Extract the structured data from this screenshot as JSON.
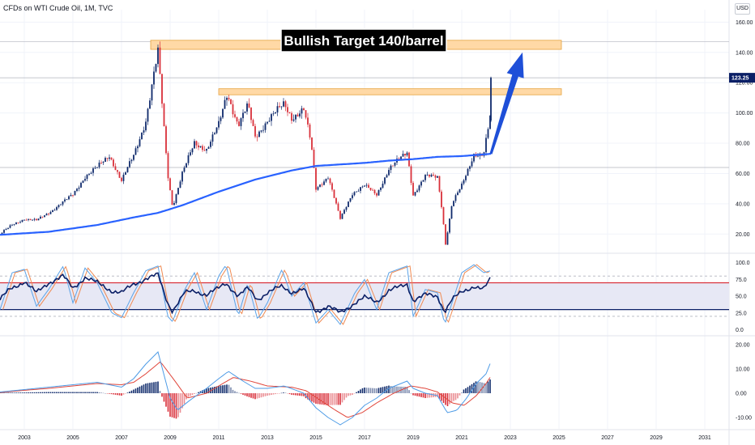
{
  "header": {
    "symbol_title": "CFDs on WTI Crude Oil, 1M, TVC",
    "currency": "USD"
  },
  "colors": {
    "bull": "#0f2a6b",
    "bear": "#d9303a",
    "ma_line": "#2962ff",
    "zone_fill": "#ffd9a6",
    "zone_border": "#e6a23c",
    "arrow": "#1e4fd8",
    "rsi_line": "#0b1f66",
    "rsi_band": "#e7e8f5",
    "stoch_k": "#5ba3e8",
    "stoch_d": "#f08a52",
    "macd_line": "#4d9be6",
    "signal_line": "#e0453a",
    "last_price_bg": "#0b1f66"
  },
  "chart_data": [
    {
      "type": "candlestick",
      "title": "CFDs on WTI Crude Oil, 1M, TVC",
      "annotation": "Bullish Target 140/barrel",
      "last_price_label": "123.25",
      "y_ticks": [
        "20.00",
        "40.00",
        "60.00",
        "80.00",
        "100.00",
        "120.00",
        "140.00",
        "160.00"
      ],
      "ylim": [
        10,
        165
      ],
      "x_ticks": [
        "2003",
        "2005",
        "2007",
        "2009",
        "2011",
        "2013",
        "2015",
        "2017",
        "2019",
        "2021",
        "2023",
        "2025",
        "2027",
        "2029",
        "2031"
      ],
      "xlim": [
        2002.0,
        2032.0
      ],
      "price_anchors": [
        [
          2002.0,
          20
        ],
        [
          2002.5,
          26
        ],
        [
          2003.0,
          30
        ],
        [
          2003.5,
          29
        ],
        [
          2004.0,
          34
        ],
        [
          2004.5,
          40
        ],
        [
          2005.0,
          46
        ],
        [
          2005.5,
          58
        ],
        [
          2006.0,
          64
        ],
        [
          2006.5,
          72
        ],
        [
          2007.0,
          55
        ],
        [
          2007.5,
          72
        ],
        [
          2008.0,
          95
        ],
        [
          2008.5,
          140
        ],
        [
          2008.9,
          60
        ],
        [
          2009.1,
          38
        ],
        [
          2009.5,
          60
        ],
        [
          2010.0,
          80
        ],
        [
          2010.5,
          76
        ],
        [
          2011.0,
          92
        ],
        [
          2011.35,
          113
        ],
        [
          2011.8,
          92
        ],
        [
          2012.2,
          105
        ],
        [
          2012.5,
          84
        ],
        [
          2013.0,
          95
        ],
        [
          2013.7,
          106
        ],
        [
          2014.0,
          97
        ],
        [
          2014.5,
          102
        ],
        [
          2014.8,
          80
        ],
        [
          2015.0,
          50
        ],
        [
          2015.5,
          58
        ],
        [
          2016.0,
          30
        ],
        [
          2016.5,
          47
        ],
        [
          2017.0,
          52
        ],
        [
          2017.5,
          46
        ],
        [
          2018.0,
          63
        ],
        [
          2018.75,
          74
        ],
        [
          2019.0,
          46
        ],
        [
          2019.5,
          58
        ],
        [
          2020.0,
          58
        ],
        [
          2020.2,
          35
        ],
        [
          2020.33,
          13
        ],
        [
          2020.6,
          40
        ],
        [
          2021.0,
          52
        ],
        [
          2021.5,
          73
        ],
        [
          2021.9,
          72
        ],
        [
          2022.2,
          100
        ]
      ],
      "final_candle": {
        "x": 2022.2,
        "open": 95,
        "high": 124,
        "low": 94,
        "close": 123.25
      },
      "moving_average": [
        [
          2002.0,
          19.5
        ],
        [
          2004.0,
          21.5
        ],
        [
          2006.0,
          26
        ],
        [
          2007.5,
          31
        ],
        [
          2008.5,
          34
        ],
        [
          2009.5,
          39
        ],
        [
          2011.0,
          48
        ],
        [
          2012.5,
          56
        ],
        [
          2014.0,
          62
        ],
        [
          2015.0,
          65
        ],
        [
          2016.0,
          66
        ],
        [
          2017.0,
          67
        ],
        [
          2018.0,
          68.5
        ],
        [
          2019.0,
          69.5
        ],
        [
          2020.0,
          71
        ],
        [
          2021.0,
          71.5
        ],
        [
          2022.2,
          73
        ]
      ],
      "resistance_zones": [
        {
          "x_start": 2008.2,
          "x_end": 2025.1,
          "y_low": 142,
          "y_high": 148
        },
        {
          "x_start": 2011.0,
          "x_end": 2025.1,
          "y_low": 112,
          "y_high": 116
        }
      ],
      "horizontal_lines": [
        64,
        123.25,
        147
      ],
      "arrow": {
        "from": [
          2022.2,
          73
        ],
        "to": [
          2023.5,
          140
        ]
      }
    },
    {
      "type": "line",
      "indicator": "RSI with Stochastic",
      "y_ticks": [
        "0.0",
        "25.0",
        "50.0",
        "75.0",
        "100.0"
      ],
      "ylim": [
        -3,
        108
      ],
      "band": [
        30,
        70
      ],
      "dashed_levels": [
        20,
        80
      ],
      "rsi_anchors": [
        [
          2002.0,
          45
        ],
        [
          2002.4,
          60
        ],
        [
          2003.0,
          72
        ],
        [
          2003.5,
          55
        ],
        [
          2004.0,
          70
        ],
        [
          2004.6,
          80
        ],
        [
          2005.0,
          62
        ],
        [
          2005.5,
          78
        ],
        [
          2006.0,
          70
        ],
        [
          2006.6,
          58
        ],
        [
          2007.0,
          55
        ],
        [
          2007.5,
          68
        ],
        [
          2008.0,
          76
        ],
        [
          2008.5,
          82
        ],
        [
          2008.9,
          40
        ],
        [
          2009.1,
          28
        ],
        [
          2009.6,
          55
        ],
        [
          2010.0,
          58
        ],
        [
          2010.5,
          52
        ],
        [
          2011.0,
          62
        ],
        [
          2011.3,
          70
        ],
        [
          2011.8,
          50
        ],
        [
          2012.2,
          62
        ],
        [
          2012.6,
          45
        ],
        [
          2013.0,
          55
        ],
        [
          2013.6,
          65
        ],
        [
          2014.0,
          56
        ],
        [
          2014.5,
          60
        ],
        [
          2015.0,
          27
        ],
        [
          2015.5,
          35
        ],
        [
          2016.0,
          25
        ],
        [
          2016.6,
          40
        ],
        [
          2017.0,
          48
        ],
        [
          2017.5,
          42
        ],
        [
          2018.0,
          58
        ],
        [
          2018.75,
          68
        ],
        [
          2019.0,
          44
        ],
        [
          2019.5,
          52
        ],
        [
          2020.0,
          50
        ],
        [
          2020.3,
          27
        ],
        [
          2020.6,
          45
        ],
        [
          2021.0,
          56
        ],
        [
          2021.5,
          65
        ],
        [
          2021.9,
          60
        ],
        [
          2022.2,
          77
        ]
      ],
      "stoch_anchors": [
        [
          2002.0,
          30
        ],
        [
          2002.5,
          85
        ],
        [
          2003.0,
          90
        ],
        [
          2003.5,
          35
        ],
        [
          2004.0,
          60
        ],
        [
          2004.6,
          95
        ],
        [
          2005.0,
          40
        ],
        [
          2005.5,
          92
        ],
        [
          2006.0,
          70
        ],
        [
          2006.6,
          25
        ],
        [
          2007.0,
          18
        ],
        [
          2007.5,
          55
        ],
        [
          2008.0,
          88
        ],
        [
          2008.5,
          95
        ],
        [
          2008.9,
          20
        ],
        [
          2009.1,
          12
        ],
        [
          2009.6,
          60
        ],
        [
          2010.0,
          85
        ],
        [
          2010.5,
          30
        ],
        [
          2011.0,
          80
        ],
        [
          2011.3,
          97
        ],
        [
          2011.8,
          20
        ],
        [
          2012.2,
          70
        ],
        [
          2012.6,
          15
        ],
        [
          2013.0,
          40
        ],
        [
          2013.6,
          90
        ],
        [
          2014.0,
          50
        ],
        [
          2014.5,
          70
        ],
        [
          2015.0,
          10
        ],
        [
          2015.5,
          30
        ],
        [
          2016.0,
          8
        ],
        [
          2016.6,
          55
        ],
        [
          2017.0,
          75
        ],
        [
          2017.5,
          30
        ],
        [
          2018.0,
          85
        ],
        [
          2018.75,
          95
        ],
        [
          2019.0,
          20
        ],
        [
          2019.5,
          60
        ],
        [
          2020.0,
          55
        ],
        [
          2020.3,
          8
        ],
        [
          2020.6,
          40
        ],
        [
          2021.0,
          85
        ],
        [
          2021.5,
          97
        ],
        [
          2021.9,
          85
        ],
        [
          2022.2,
          88
        ]
      ]
    },
    {
      "type": "bar",
      "indicator": "MACD",
      "y_ticks": [
        "-10.00",
        "0.00",
        "10.00",
        "20.00"
      ],
      "ylim": [
        -14,
        22
      ],
      "macd_anchors": [
        [
          2002.0,
          0.5
        ],
        [
          2003.0,
          1.5
        ],
        [
          2004.0,
          2.5
        ],
        [
          2005.0,
          3.5
        ],
        [
          2006.0,
          4.5
        ],
        [
          2007.0,
          2.5
        ],
        [
          2007.5,
          6
        ],
        [
          2008.0,
          12
        ],
        [
          2008.5,
          17
        ],
        [
          2009.0,
          -2
        ],
        [
          2009.3,
          -7
        ],
        [
          2009.8,
          -3
        ],
        [
          2010.5,
          2
        ],
        [
          2011.0,
          6
        ],
        [
          2011.4,
          9
        ],
        [
          2012.0,
          5
        ],
        [
          2012.5,
          2
        ],
        [
          2013.0,
          2
        ],
        [
          2013.7,
          3
        ],
        [
          2014.5,
          0
        ],
        [
          2015.0,
          -6
        ],
        [
          2015.5,
          -10
        ],
        [
          2016.0,
          -13
        ],
        [
          2016.5,
          -10
        ],
        [
          2017.0,
          -5
        ],
        [
          2017.5,
          -2
        ],
        [
          2018.0,
          2
        ],
        [
          2018.75,
          5
        ],
        [
          2019.0,
          2
        ],
        [
          2019.5,
          0
        ],
        [
          2020.0,
          -1
        ],
        [
          2020.4,
          -8
        ],
        [
          2020.8,
          -7
        ],
        [
          2021.2,
          -2
        ],
        [
          2021.6,
          4
        ],
        [
          2022.0,
          8
        ],
        [
          2022.2,
          13
        ]
      ],
      "signal_anchors": [
        [
          2002.0,
          0.3
        ],
        [
          2003.0,
          1.2
        ],
        [
          2004.0,
          2
        ],
        [
          2005.0,
          3
        ],
        [
          2006.0,
          4
        ],
        [
          2007.0,
          3.5
        ],
        [
          2007.5,
          4.5
        ],
        [
          2008.0,
          8
        ],
        [
          2008.6,
          13
        ],
        [
          2009.2,
          5
        ],
        [
          2009.7,
          -2
        ],
        [
          2010.5,
          0
        ],
        [
          2011.0,
          3
        ],
        [
          2011.6,
          6.5
        ],
        [
          2012.3,
          5
        ],
        [
          2013.0,
          3
        ],
        [
          2014.0,
          2.5
        ],
        [
          2014.6,
          1
        ],
        [
          2015.2,
          -3
        ],
        [
          2015.8,
          -7
        ],
        [
          2016.3,
          -10
        ],
        [
          2016.9,
          -8
        ],
        [
          2017.5,
          -4
        ],
        [
          2018.2,
          0
        ],
        [
          2018.9,
          3
        ],
        [
          2019.5,
          2
        ],
        [
          2020.0,
          0.5
        ],
        [
          2020.6,
          -4
        ],
        [
          2021.1,
          -5
        ],
        [
          2021.6,
          -1
        ],
        [
          2022.0,
          4
        ],
        [
          2022.2,
          7
        ]
      ]
    }
  ]
}
